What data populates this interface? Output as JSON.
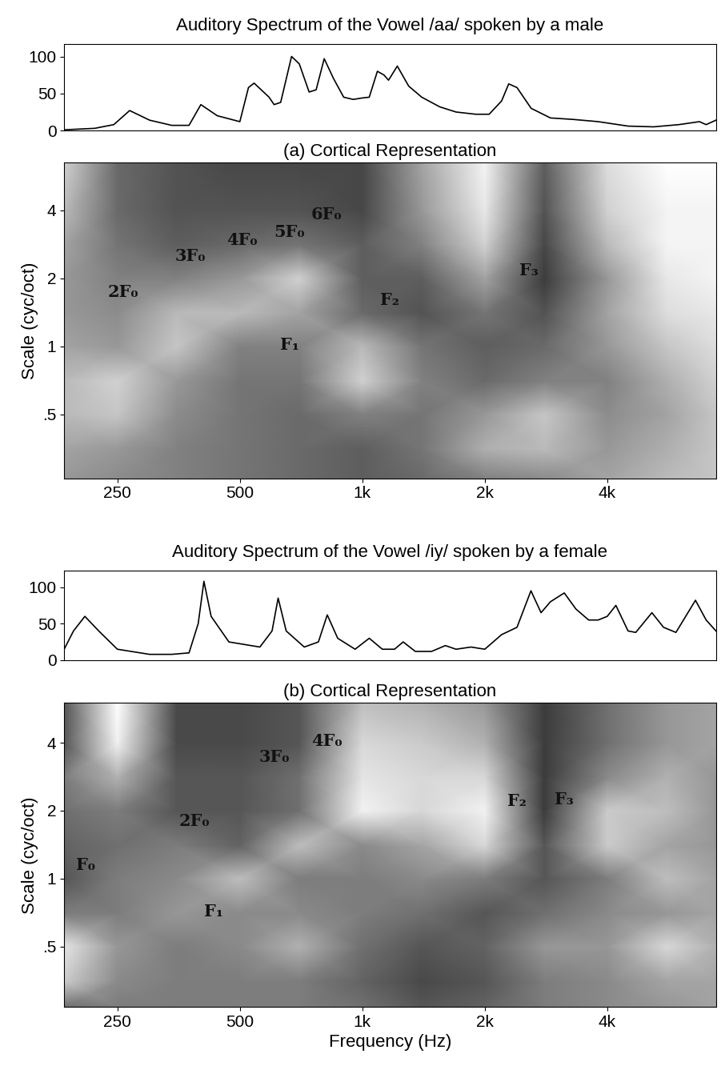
{
  "chart_data": [
    {
      "type": "line",
      "title": "Auditory Spectrum of the Vowel /aa/ spoken by a male",
      "color": "#000000",
      "tick_labels": "y",
      "x": [
        185,
        220,
        245,
        268,
        300,
        340,
        375,
        401,
        440,
        500,
        525,
        542,
        590,
        607,
        630,
        670,
        700,
        740,
        770,
        806,
        850,
        900,
        950,
        1000,
        1040,
        1089,
        1130,
        1160,
        1219,
        1300,
        1400,
        1550,
        1700,
        1900,
        2050,
        2200,
        2290,
        2400,
        2600,
        2900,
        3300,
        3800,
        4500,
        5200,
        6000,
        6740,
        7000,
        7400
      ],
      "values": [
        1,
        3,
        8,
        27,
        14,
        7,
        7,
        35,
        20,
        12,
        58,
        64,
        45,
        35,
        38,
        100,
        90,
        52,
        55,
        97,
        70,
        45,
        42,
        44,
        45,
        80,
        75,
        68,
        87,
        60,
        45,
        32,
        25,
        22,
        22,
        40,
        63,
        58,
        30,
        17,
        15,
        12,
        6,
        5,
        8,
        12,
        8,
        14
      ],
      "xlim": [
        185,
        7400
      ],
      "ylim": [
        0,
        117
      ],
      "yticks": [
        0,
        50,
        100
      ]
    },
    {
      "type": "heatmap",
      "title": "(a) Cortical Representation",
      "y_label": "Scale (cyc/oct)",
      "xlim": [
        185,
        7400
      ],
      "ylim": [
        0.26,
        6.5
      ],
      "xticks": [
        250,
        500,
        {
          "value": 1000,
          "label": "1k"
        },
        {
          "value": 2000,
          "label": "2k"
        },
        {
          "value": 4000,
          "label": "4k"
        }
      ],
      "yticks": [
        {
          "value": 0.5,
          "label": ".5"
        },
        1,
        2,
        4
      ],
      "x": [
        185,
        250,
        350,
        500,
        700,
        1000,
        1400,
        2000,
        2800,
        4000,
        5600,
        7400
      ],
      "y": [
        0.26,
        0.35,
        0.5,
        0.7,
        1,
        1.4,
        2,
        2.8,
        4,
        6.5
      ],
      "cells": [
        [
          45,
          50,
          55,
          60,
          65,
          70,
          65,
          55,
          50,
          40,
          30,
          25
        ],
        [
          40,
          45,
          55,
          60,
          65,
          70,
          60,
          35,
          30,
          45,
          35,
          25
        ],
        [
          30,
          25,
          50,
          60,
          65,
          55,
          60,
          45,
          25,
          50,
          40,
          25
        ],
        [
          30,
          20,
          45,
          60,
          60,
          20,
          55,
          65,
          55,
          55,
          35,
          20
        ],
        [
          40,
          45,
          25,
          55,
          55,
          30,
          60,
          70,
          65,
          45,
          25,
          15
        ],
        [
          45,
          50,
          30,
          30,
          40,
          65,
          75,
          60,
          75,
          40,
          15,
          10
        ],
        [
          45,
          55,
          55,
          45,
          20,
          70,
          70,
          40,
          85,
          45,
          10,
          5
        ],
        [
          40,
          60,
          70,
          65,
          60,
          70,
          55,
          20,
          80,
          30,
          5,
          5
        ],
        [
          30,
          65,
          75,
          75,
          75,
          80,
          45,
          10,
          75,
          20,
          5,
          5
        ],
        [
          20,
          65,
          75,
          80,
          80,
          80,
          40,
          5,
          70,
          15,
          0,
          0
        ]
      ],
      "annotations": [
        {
          "text": "2F₀",
          "x": 258,
          "y": 1.74
        },
        {
          "text": "3F₀",
          "x": 378,
          "y": 2.51
        },
        {
          "text": "4F₀",
          "x": 507,
          "y": 2.96
        },
        {
          "text": "5F₀",
          "x": 663,
          "y": 3.2
        },
        {
          "text": "6F₀",
          "x": 817,
          "y": 3.84
        },
        {
          "text": "F₁",
          "x": 663,
          "y": 1.01
        },
        {
          "text": "F₂",
          "x": 1166,
          "y": 1.6
        },
        {
          "text": "F₃",
          "x": 2562,
          "y": 2.17
        }
      ]
    },
    {
      "type": "line",
      "title": "Auditory Spectrum of the Vowel /iy/ spoken by a female",
      "color": "#000000",
      "tick_labels": "y",
      "x": [
        185,
        195,
        208,
        225,
        250,
        300,
        340,
        375,
        395,
        408,
        425,
        470,
        560,
        600,
        621,
        650,
        720,
        780,
        820,
        870,
        960,
        1040,
        1120,
        1200,
        1260,
        1350,
        1480,
        1600,
        1700,
        1850,
        2000,
        2200,
        2400,
        2597,
        2750,
        2900,
        3136,
        3350,
        3600,
        3800,
        4000,
        4200,
        4500,
        4700,
        5150,
        5500,
        5900,
        6590,
        7000,
        7400
      ],
      "values": [
        15,
        40,
        60,
        40,
        15,
        8,
        8,
        10,
        50,
        108,
        60,
        25,
        18,
        40,
        85,
        40,
        18,
        25,
        62,
        30,
        15,
        30,
        15,
        15,
        25,
        12,
        12,
        20,
        15,
        18,
        15,
        35,
        45,
        95,
        65,
        80,
        92,
        70,
        55,
        55,
        60,
        75,
        40,
        38,
        65,
        45,
        38,
        82,
        55,
        40
      ],
      "xlim": [
        185,
        7400
      ],
      "ylim": [
        0,
        123
      ],
      "yticks": [
        0,
        50,
        100
      ]
    },
    {
      "type": "heatmap",
      "title": "(b) Cortical Representation",
      "y_label": "Scale (cyc/oct)",
      "x_label": "Frequency (Hz)",
      "xlim": [
        185,
        7400
      ],
      "ylim": [
        0.27,
        6.0
      ],
      "xticks": [
        250,
        500,
        {
          "value": 1000,
          "label": "1k"
        },
        {
          "value": 2000,
          "label": "2k"
        },
        {
          "value": 4000,
          "label": "4k"
        }
      ],
      "yticks": [
        {
          "value": 0.5,
          "label": ".5"
        },
        1,
        2,
        4
      ],
      "x": [
        185,
        250,
        350,
        500,
        700,
        1000,
        1400,
        2000,
        2800,
        4000,
        5600,
        7400
      ],
      "y": [
        0.27,
        0.35,
        0.5,
        0.7,
        1,
        1.4,
        2,
        2.8,
        4,
        6.0
      ],
      "cells": [
        [
          60,
          55,
          55,
          55,
          55,
          60,
          70,
          65,
          55,
          50,
          45,
          40
        ],
        [
          25,
          50,
          55,
          55,
          55,
          65,
          75,
          70,
          55,
          50,
          40,
          40
        ],
        [
          15,
          45,
          55,
          50,
          35,
          60,
          70,
          65,
          45,
          45,
          20,
          35
        ],
        [
          55,
          55,
          45,
          50,
          50,
          55,
          60,
          70,
          60,
          50,
          45,
          40
        ],
        [
          70,
          55,
          50,
          30,
          55,
          55,
          50,
          55,
          70,
          55,
          30,
          40
        ],
        [
          65,
          60,
          55,
          65,
          30,
          50,
          40,
          20,
          70,
          25,
          40,
          45
        ],
        [
          60,
          55,
          70,
          70,
          60,
          10,
          20,
          10,
          80,
          25,
          30,
          45
        ],
        [
          55,
          35,
          70,
          70,
          60,
          15,
          20,
          20,
          80,
          50,
          35,
          45
        ],
        [
          70,
          10,
          75,
          75,
          70,
          20,
          25,
          35,
          80,
          60,
          45,
          40
        ],
        [
          70,
          5,
          75,
          75,
          70,
          30,
          35,
          45,
          80,
          60,
          45,
          40
        ]
      ],
      "annotations": [
        {
          "text": "F₀",
          "x": 209,
          "y": 1.15
        },
        {
          "text": "2F₀",
          "x": 387,
          "y": 1.8
        },
        {
          "text": "3F₀",
          "x": 607,
          "y": 3.45
        },
        {
          "text": "4F₀",
          "x": 817,
          "y": 4.07
        },
        {
          "text": "F₁",
          "x": 432,
          "y": 0.715
        },
        {
          "text": "F₂",
          "x": 2395,
          "y": 2.21
        },
        {
          "text": "F₃",
          "x": 3136,
          "y": 2.25
        }
      ]
    }
  ]
}
